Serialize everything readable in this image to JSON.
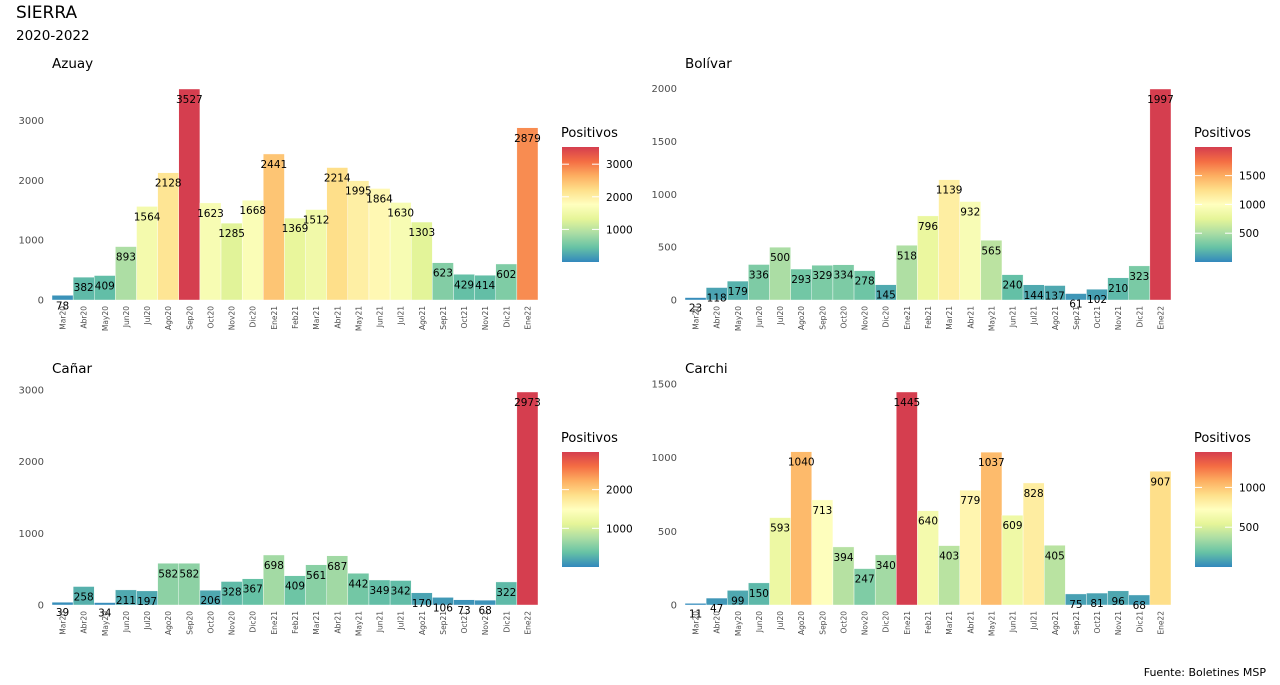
{
  "figure": {
    "title": "SIERRA",
    "subtitle": "2020-2022",
    "caption": "Fuente: Boletines MSP"
  },
  "colors": {
    "scale": [
      "#3288bd",
      "#66c2a5",
      "#abdda4",
      "#e6f598",
      "#ffffbf",
      "#fee08b",
      "#fdae61",
      "#f46d43",
      "#d53e4f"
    ],
    "text": "#000000",
    "axis_text": "#4d4d4d"
  },
  "chart_data": [
    {
      "type": "bar",
      "title": "Azuay",
      "legend_title": "Positivos",
      "legend_position": "right",
      "grid": false,
      "categories": [
        "Mar20",
        "Abr20",
        "May20",
        "Jun20",
        "Jul20",
        "Ago20",
        "Sep20",
        "Oct20",
        "Nov20",
        "Dic20",
        "Ene21",
        "Feb21",
        "Mar21",
        "Abr21",
        "May21",
        "Jun21",
        "Jul21",
        "Ago21",
        "Sep21",
        "Oct21",
        "Nov21",
        "Dic21",
        "Ene22"
      ],
      "values": [
        78,
        382,
        409,
        893,
        1564,
        2128,
        3527,
        1623,
        1285,
        1668,
        2441,
        1369,
        1512,
        2214,
        1995,
        1864,
        1630,
        1303,
        623,
        429,
        414,
        602,
        2879
      ],
      "ylim": [
        0,
        3527
      ],
      "yticks": [
        0,
        1000,
        2000,
        3000
      ],
      "legend_ticks": [
        1000,
        2000,
        3000
      ]
    },
    {
      "type": "bar",
      "title": "Bolívar",
      "legend_title": "Positivos",
      "legend_position": "right",
      "grid": false,
      "categories": [
        "Mar20",
        "Abr20",
        "May20",
        "Jun20",
        "Jul20",
        "Ago20",
        "Sep20",
        "Oct20",
        "Nov20",
        "Dic20",
        "Ene21",
        "Feb21",
        "Mar21",
        "Abr21",
        "May21",
        "Jun21",
        "Jul21",
        "Ago21",
        "Sep21",
        "Oct21",
        "Nov21",
        "Dic21",
        "Ene22"
      ],
      "values": [
        23,
        118,
        179,
        336,
        500,
        293,
        329,
        334,
        278,
        145,
        518,
        796,
        1139,
        932,
        565,
        240,
        144,
        137,
        61,
        102,
        210,
        323,
        1997
      ],
      "ylim": [
        0,
        1997
      ],
      "yticks": [
        0,
        500,
        1000,
        1500,
        2000
      ],
      "legend_ticks": [
        500,
        1000,
        1500
      ]
    },
    {
      "type": "bar",
      "title": "Cañar",
      "legend_title": "Positivos",
      "legend_position": "right",
      "grid": false,
      "categories": [
        "Mar20",
        "Abr20",
        "May20",
        "Jun20",
        "Jul20",
        "Ago20",
        "Sep20",
        "Oct20",
        "Nov20",
        "Dic20",
        "Ene21",
        "Feb21",
        "Mar21",
        "Abr21",
        "May21",
        "Jun21",
        "Jul21",
        "Ago21",
        "Sep21",
        "Oct21",
        "Nov21",
        "Dic21",
        "Ene22"
      ],
      "values": [
        39,
        258,
        34,
        211,
        197,
        582,
        582,
        206,
        328,
        367,
        698,
        409,
        561,
        687,
        442,
        349,
        342,
        170,
        106,
        73,
        68,
        322,
        2973
      ],
      "ylim": [
        0,
        2973
      ],
      "yticks": [
        0,
        1000,
        2000,
        3000
      ],
      "legend_ticks": [
        1000,
        2000
      ]
    },
    {
      "type": "bar",
      "title": "Carchi",
      "legend_title": "Positivos",
      "legend_position": "right",
      "grid": false,
      "categories": [
        "Mar20",
        "Abr20",
        "May20",
        "Jun20",
        "Jul20",
        "Ago20",
        "Sep20",
        "Oct20",
        "Nov20",
        "Dic20",
        "Ene21",
        "Feb21",
        "Mar21",
        "Abr21",
        "May21",
        "Jun21",
        "Jul21",
        "Ago21",
        "Sep21",
        "Oct21",
        "Nov21",
        "Dic21",
        "Ene22"
      ],
      "values": [
        11,
        47,
        99,
        150,
        593,
        1040,
        713,
        394,
        247,
        340,
        1445,
        640,
        403,
        779,
        1037,
        609,
        828,
        405,
        75,
        81,
        96,
        68,
        907
      ],
      "ylim": [
        0,
        1445
      ],
      "yticks": [
        0,
        500,
        1000,
        1500
      ],
      "legend_ticks": [
        500,
        1000
      ]
    }
  ]
}
